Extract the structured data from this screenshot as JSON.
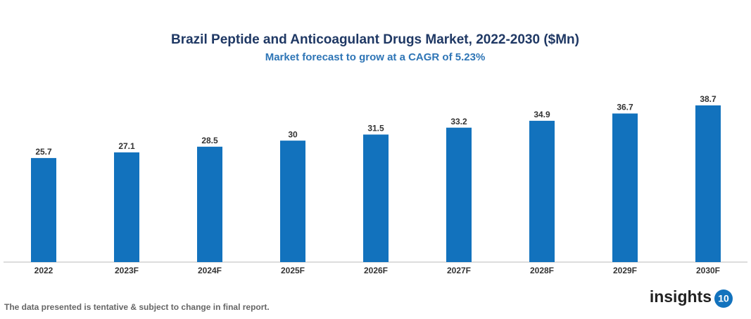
{
  "chart_data": {
    "type": "bar",
    "title": "Brazil Peptide and Anticoagulant Drugs Market, 2022-2030 ($Mn)",
    "subtitle": "Market forecast to grow at a CAGR of 5.23%",
    "categories": [
      "2022",
      "2023F",
      "2024F",
      "2025F",
      "2026F",
      "2027F",
      "2028F",
      "2029F",
      "2030F"
    ],
    "values": [
      25.7,
      27.1,
      28.5,
      30,
      31.5,
      33.2,
      34.9,
      36.7,
      38.7
    ],
    "color": "#1272bd"
  },
  "footer": "The data presented is tentative & subject to change in final report.",
  "logo": {
    "text": "insights",
    "badge": "10"
  }
}
